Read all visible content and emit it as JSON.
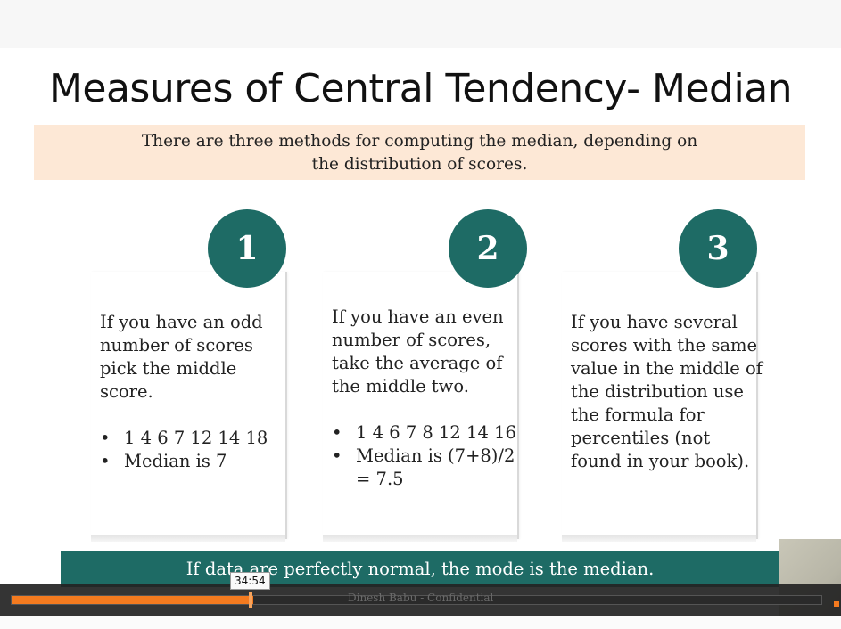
{
  "slide": {
    "title": "Measures of Central Tendency- Median",
    "intro_line1": "There are three methods for computing the median, depending on",
    "intro_line2": "the distribution of scores.",
    "columns": [
      {
        "number": "1",
        "lines": [
          "If you have an odd",
          "number of scores",
          "pick the middle",
          "score."
        ],
        "bullets": [
          "1 4 6 7 12 14 18",
          "Median is 7"
        ]
      },
      {
        "number": "2",
        "lines": [
          "If you have an even",
          "number of scores,",
          "take the average of",
          "the middle two."
        ],
        "bullets": [
          "1 4 6 7 8 12 14 16",
          "Median is (7+8)/2",
          "= 7.5"
        ]
      },
      {
        "number": "3",
        "lines": [
          "If you have several",
          "scores with the same",
          "value in the middle of",
          "the distribution use",
          "the formula for",
          "percentiles (not",
          "found in your book)."
        ],
        "bullets": []
      }
    ],
    "footer": "If data are perfectly normal, the mode is the median."
  },
  "player": {
    "time_tooltip": "34:54",
    "progress": 0.298,
    "watermark": "Dinesh Babu - Confidential",
    "accent": "#f47a1f"
  }
}
